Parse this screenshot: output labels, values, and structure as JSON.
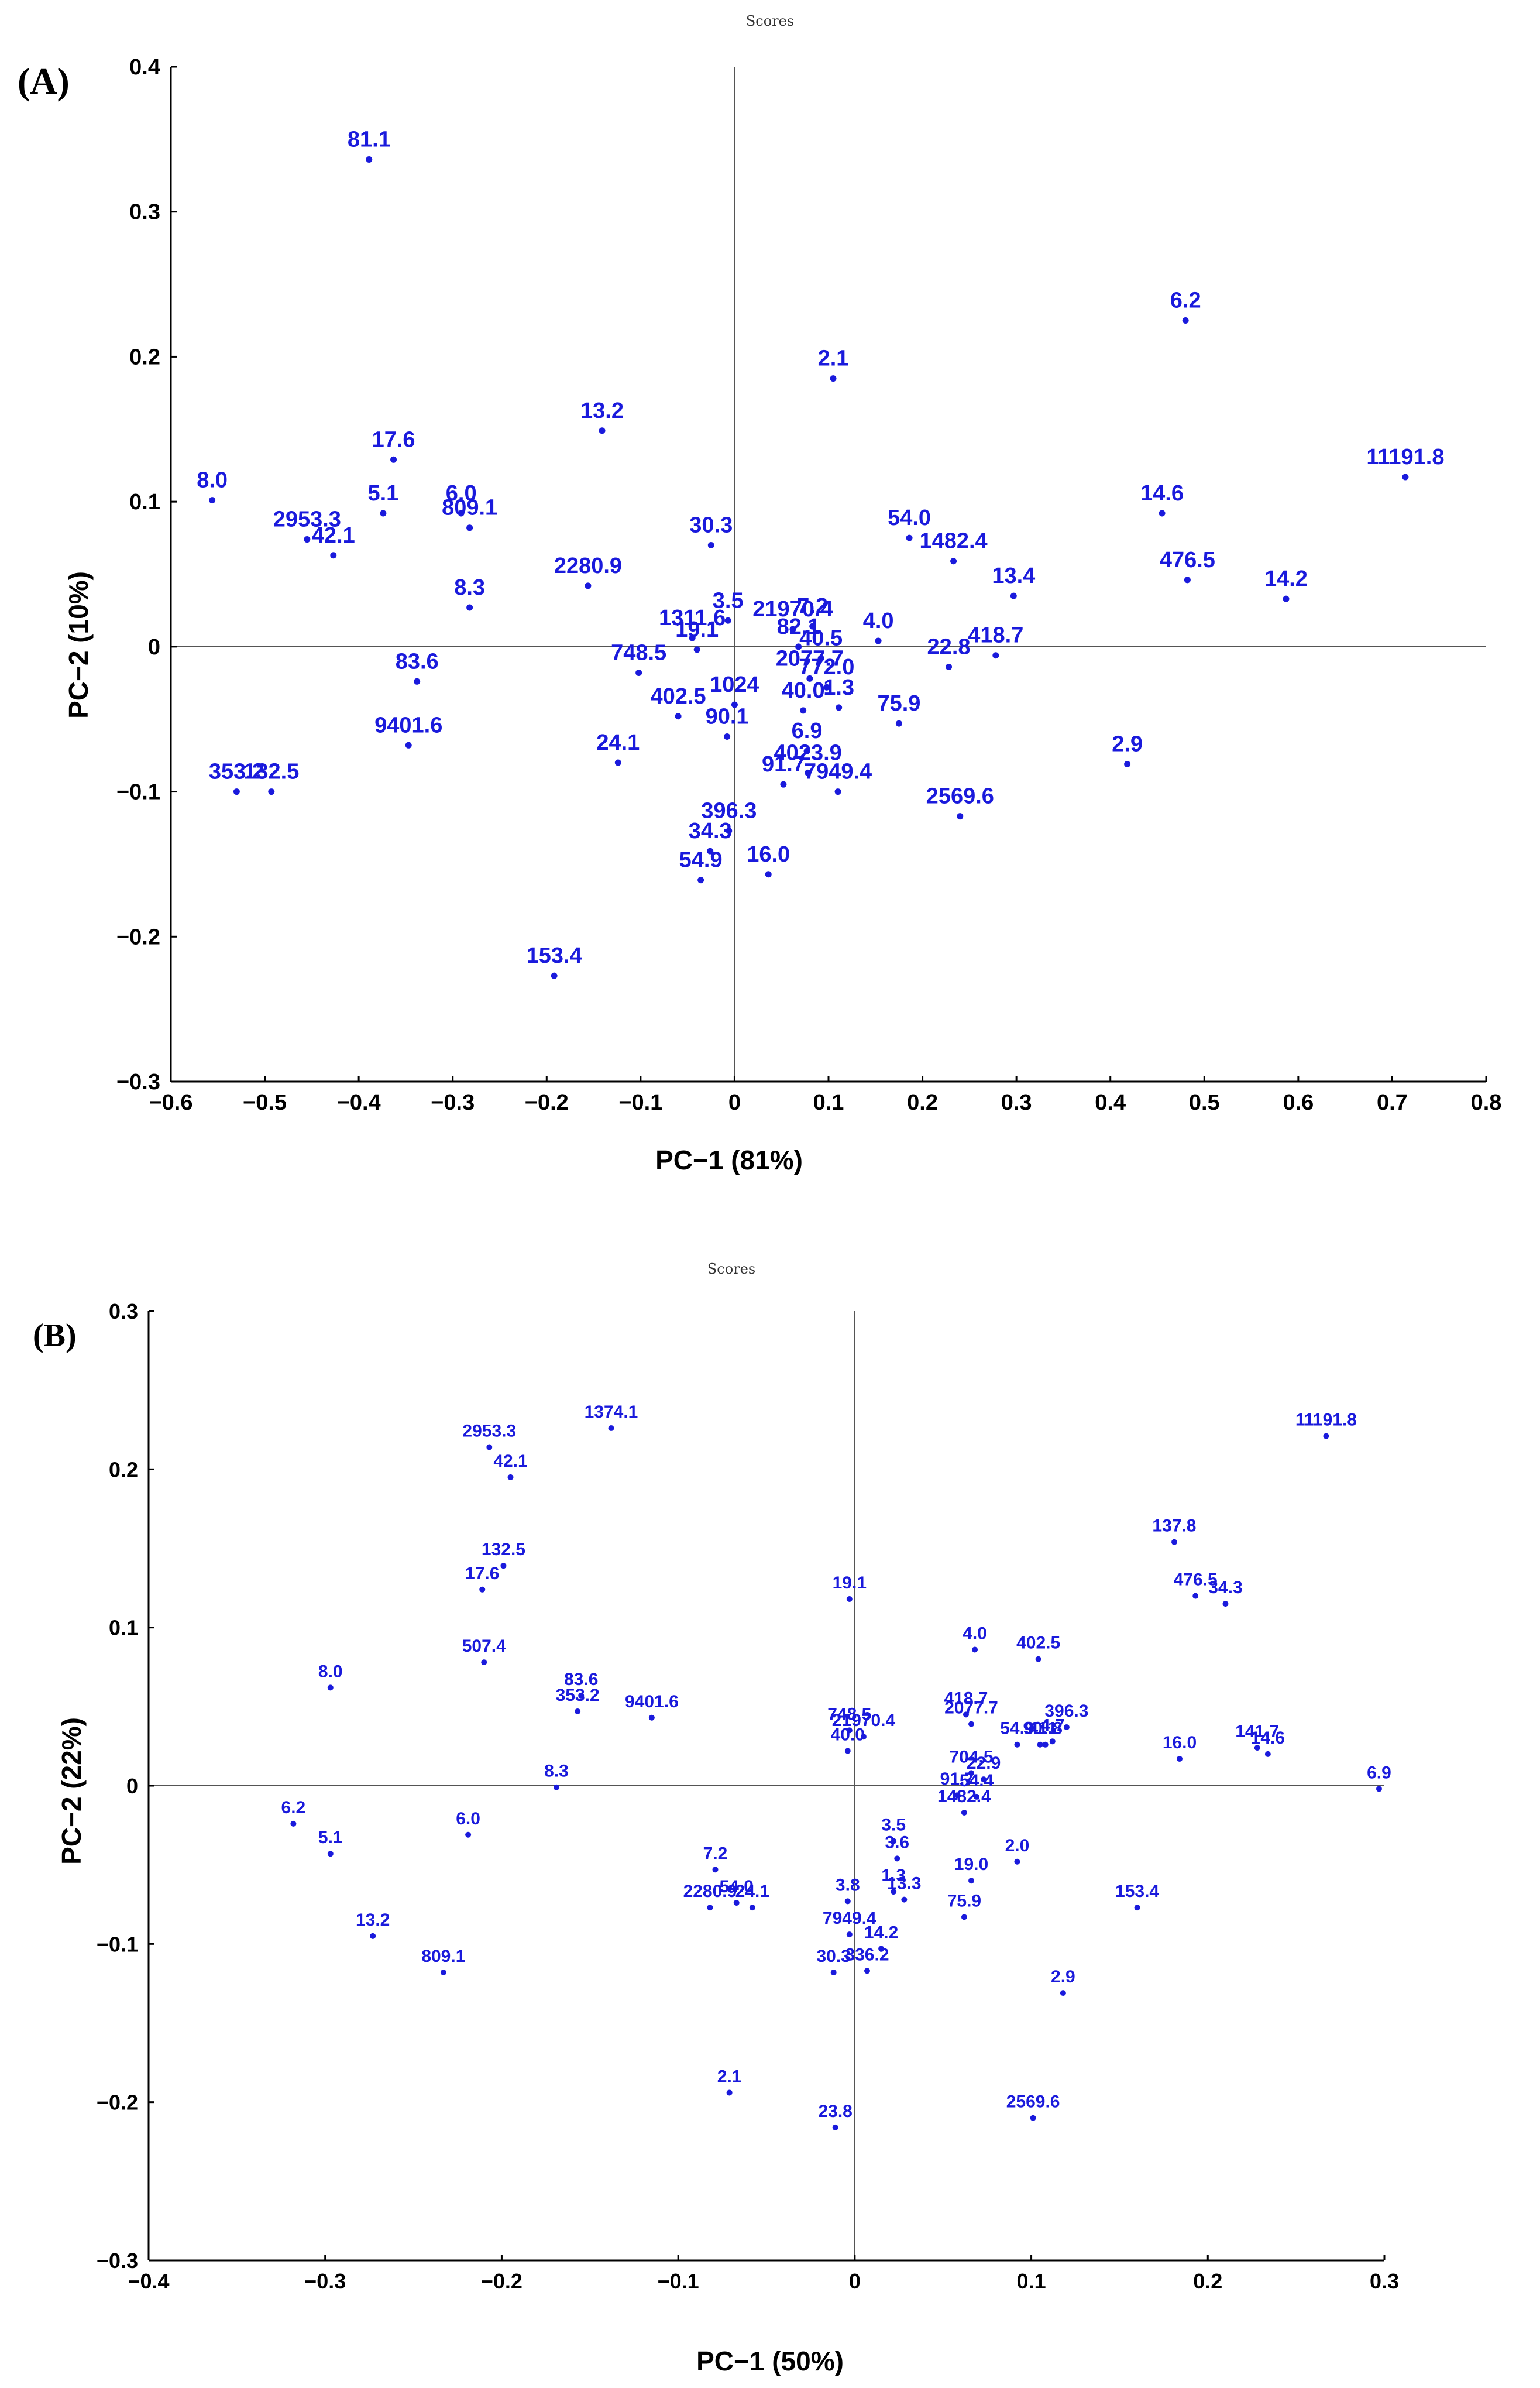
{
  "colors": {
    "points": "#1a1adc",
    "axes": "#000000"
  },
  "chart_data": [
    {
      "type": "scatter",
      "panel_label": "(A)",
      "title": "Scores",
      "xlabel": "PC−1 (81%)",
      "ylabel": "PC−2 (10%)",
      "xlim": [
        -0.6,
        0.8
      ],
      "ylim": [
        -0.3,
        0.4
      ],
      "xticks": [
        -0.6,
        -0.5,
        -0.4,
        -0.3,
        -0.2,
        -0.1,
        0,
        0.1,
        0.2,
        0.3,
        0.4,
        0.5,
        0.6,
        0.7,
        0.8
      ],
      "xtick_labels": [
        "−0.6",
        "−0.5",
        "−0.4",
        "−0.3",
        "−0.2",
        "−0.1",
        "0",
        "0.1",
        "0.2",
        "0.3",
        "0.4",
        "0.5",
        "0.6",
        "0.7",
        "0.8"
      ],
      "yticks": [
        -0.3,
        -0.2,
        -0.1,
        0,
        0.1,
        0.2,
        0.3,
        0.4
      ],
      "ytick_labels": [
        "−0.3",
        "−0.2",
        "−0.1",
        "0",
        "0.1",
        "0.2",
        "0.3",
        "0.4"
      ],
      "points": [
        {
          "label": "81.1",
          "x": -0.389,
          "y": 0.336
        },
        {
          "label": "6.2",
          "x": 0.48,
          "y": 0.225
        },
        {
          "label": "2.1",
          "x": 0.105,
          "y": 0.185
        },
        {
          "label": "13.2",
          "x": -0.141,
          "y": 0.149
        },
        {
          "label": "11191.8",
          "x": 0.714,
          "y": 0.117
        },
        {
          "label": "17.6",
          "x": -0.363,
          "y": 0.129
        },
        {
          "label": "8.0",
          "x": -0.556,
          "y": 0.101
        },
        {
          "label": "2953.3",
          "x": -0.455,
          "y": 0.074
        },
        {
          "label": "5.1",
          "x": -0.374,
          "y": 0.092
        },
        {
          "label": "6.0",
          "x": -0.291,
          "y": 0.092
        },
        {
          "label": "809.1",
          "x": -0.282,
          "y": 0.082
        },
        {
          "label": "42.1",
          "x": -0.427,
          "y": 0.063
        },
        {
          "label": "14.6",
          "x": 0.455,
          "y": 0.092
        },
        {
          "label": "54.0",
          "x": 0.186,
          "y": 0.075
        },
        {
          "label": "30.3",
          "x": -0.025,
          "y": 0.07
        },
        {
          "label": "1482.4",
          "x": 0.233,
          "y": 0.059
        },
        {
          "label": "476.5",
          "x": 0.482,
          "y": 0.046
        },
        {
          "label": "2280.9",
          "x": -0.156,
          "y": 0.042
        },
        {
          "label": "13.4",
          "x": 0.297,
          "y": 0.035
        },
        {
          "label": "14.2",
          "x": 0.587,
          "y": 0.033
        },
        {
          "label": "8.3",
          "x": -0.282,
          "y": 0.027
        },
        {
          "label": "3.5",
          "x": -0.007,
          "y": 0.018
        },
        {
          "label": "21970.4",
          "x": 0.062,
          "y": 0.012
        },
        {
          "label": "7.2",
          "x": 0.083,
          "y": 0.014
        },
        {
          "label": "4.0",
          "x": 0.153,
          "y": 0.004
        },
        {
          "label": "1311.6",
          "x": -0.045,
          "y": 0.006
        },
        {
          "label": "19.1",
          "x": -0.04,
          "y": -0.002
        },
        {
          "label": "82.1",
          "x": 0.068,
          "y": 0.0
        },
        {
          "label": "40.5",
          "x": 0.092,
          "y": -0.008
        },
        {
          "label": "748.5",
          "x": -0.102,
          "y": -0.018
        },
        {
          "label": "418.7",
          "x": 0.278,
          "y": -0.006
        },
        {
          "label": "22.8",
          "x": 0.228,
          "y": -0.014
        },
        {
          "label": "2077.7",
          "x": 0.08,
          "y": -0.022
        },
        {
          "label": "772.0",
          "x": 0.098,
          "y": -0.028
        },
        {
          "label": "1024",
          "x": 0.0,
          "y": -0.04
        },
        {
          "label": "402.5",
          "x": -0.06,
          "y": -0.048
        },
        {
          "label": "40.0",
          "x": 0.073,
          "y": -0.044
        },
        {
          "label": "1.3",
          "x": 0.111,
          "y": -0.042
        },
        {
          "label": "90.1",
          "x": -0.008,
          "y": -0.062
        },
        {
          "label": "75.9",
          "x": 0.175,
          "y": -0.053
        },
        {
          "label": "6.9",
          "x": 0.077,
          "y": -0.072
        },
        {
          "label": "83.6",
          "x": -0.338,
          "y": -0.024
        },
        {
          "label": "9401.6",
          "x": -0.347,
          "y": -0.068
        },
        {
          "label": "24.1",
          "x": -0.124,
          "y": -0.08
        },
        {
          "label": "4023.9",
          "x": 0.078,
          "y": -0.087
        },
        {
          "label": "91.7",
          "x": 0.052,
          "y": -0.095
        },
        {
          "label": "7949.4",
          "x": 0.11,
          "y": -0.1
        },
        {
          "label": "2.9",
          "x": 0.418,
          "y": -0.081
        },
        {
          "label": "2569.6",
          "x": 0.24,
          "y": -0.117
        },
        {
          "label": "353.2",
          "x": -0.53,
          "y": -0.1
        },
        {
          "label": "132.5",
          "x": -0.493,
          "y": -0.1
        },
        {
          "label": "396.3",
          "x": -0.006,
          "y": -0.127
        },
        {
          "label": "34.3",
          "x": -0.026,
          "y": -0.141
        },
        {
          "label": "54.9",
          "x": -0.036,
          "y": -0.161
        },
        {
          "label": "16.0",
          "x": 0.036,
          "y": -0.157
        },
        {
          "label": "153.4",
          "x": -0.192,
          "y": -0.227
        }
      ]
    },
    {
      "type": "scatter",
      "panel_label": "(B)",
      "title": "Scores",
      "xlabel": "PC−1 (50%)",
      "ylabel": "PC−2 (22%)",
      "xlim": [
        -0.4,
        0.3
      ],
      "ylim": [
        -0.3,
        0.3
      ],
      "xticks": [
        -0.4,
        -0.3,
        -0.2,
        -0.1,
        0,
        0.1,
        0.2,
        0.3
      ],
      "xtick_labels": [
        "−0.4",
        "−0.3",
        "−0.2",
        "−0.1",
        "0",
        "0.1",
        "0.2",
        "0.3"
      ],
      "yticks": [
        -0.3,
        -0.2,
        -0.1,
        0,
        0.1,
        0.2,
        0.3
      ],
      "ytick_labels": [
        "−0.3",
        "−0.2",
        "−0.1",
        "0",
        "0.1",
        "0.2",
        "0.3"
      ],
      "points": [
        {
          "label": "1374.1",
          "x": -0.138,
          "y": 0.226
        },
        {
          "label": "2953.3",
          "x": -0.207,
          "y": 0.214
        },
        {
          "label": "42.1",
          "x": -0.195,
          "y": 0.195
        },
        {
          "label": "11191.8",
          "x": 0.267,
          "y": 0.221
        },
        {
          "label": "137.8",
          "x": 0.181,
          "y": 0.154
        },
        {
          "label": "132.5",
          "x": -0.199,
          "y": 0.139
        },
        {
          "label": "17.6",
          "x": -0.211,
          "y": 0.124
        },
        {
          "label": "476.5",
          "x": 0.193,
          "y": 0.12
        },
        {
          "label": "34.3",
          "x": 0.21,
          "y": 0.115
        },
        {
          "label": "19.1",
          "x": -0.003,
          "y": 0.118
        },
        {
          "label": "4.0",
          "x": 0.068,
          "y": 0.086
        },
        {
          "label": "402.5",
          "x": 0.104,
          "y": 0.08
        },
        {
          "label": "507.4",
          "x": -0.21,
          "y": 0.078
        },
        {
          "label": "8.0",
          "x": -0.297,
          "y": 0.062
        },
        {
          "label": "83.6",
          "x": -0.155,
          "y": 0.057
        },
        {
          "label": "353.2",
          "x": -0.157,
          "y": 0.047
        },
        {
          "label": "9401.6",
          "x": -0.115,
          "y": 0.043
        },
        {
          "label": "418.7",
          "x": 0.063,
          "y": 0.045
        },
        {
          "label": "396.3",
          "x": 0.12,
          "y": 0.037
        },
        {
          "label": "2077.7",
          "x": 0.066,
          "y": 0.039
        },
        {
          "label": "748.5",
          "x": -0.003,
          "y": 0.035
        },
        {
          "label": "21970.4",
          "x": 0.005,
          "y": 0.031
        },
        {
          "label": "90.1",
          "x": 0.105,
          "y": 0.026
        },
        {
          "label": "4.7",
          "x": 0.112,
          "y": 0.028
        },
        {
          "label": "41.8",
          "x": 0.108,
          "y": 0.026
        },
        {
          "label": "40.0",
          "x": -0.004,
          "y": 0.022
        },
        {
          "label": "54.9",
          "x": 0.092,
          "y": 0.026
        },
        {
          "label": "16.0",
          "x": 0.184,
          "y": 0.017
        },
        {
          "label": "141.7",
          "x": 0.228,
          "y": 0.024
        },
        {
          "label": "14.6",
          "x": 0.234,
          "y": 0.02
        },
        {
          "label": "6.9",
          "x": 0.297,
          "y": -0.002
        },
        {
          "label": "704.5",
          "x": 0.066,
          "y": 0.008
        },
        {
          "label": "22.9",
          "x": 0.073,
          "y": 0.004
        },
        {
          "label": "91.7",
          "x": 0.058,
          "y": -0.006
        },
        {
          "label": "54.4",
          "x": 0.069,
          "y": -0.007
        },
        {
          "label": "1482.4",
          "x": 0.062,
          "y": -0.017
        },
        {
          "label": "8.3",
          "x": -0.169,
          "y": -0.001
        },
        {
          "label": "6.2",
          "x": -0.318,
          "y": -0.024
        },
        {
          "label": "5.1",
          "x": -0.297,
          "y": -0.043
        },
        {
          "label": "6.0",
          "x": -0.219,
          "y": -0.031
        },
        {
          "label": "3.5",
          "x": 0.022,
          "y": -0.035
        },
        {
          "label": "3.6",
          "x": 0.024,
          "y": -0.046
        },
        {
          "label": "2.0",
          "x": 0.092,
          "y": -0.048
        },
        {
          "label": "7.2",
          "x": -0.079,
          "y": -0.053
        },
        {
          "label": "19.0",
          "x": 0.066,
          "y": -0.06
        },
        {
          "label": "2280.9",
          "x": -0.082,
          "y": -0.077
        },
        {
          "label": "24.1",
          "x": -0.058,
          "y": -0.077
        },
        {
          "label": "54.0",
          "x": -0.067,
          "y": -0.074
        },
        {
          "label": "3.8",
          "x": -0.004,
          "y": -0.073
        },
        {
          "label": "1.3",
          "x": 0.022,
          "y": -0.067
        },
        {
          "label": "13.3",
          "x": 0.028,
          "y": -0.072
        },
        {
          "label": "75.9",
          "x": 0.062,
          "y": -0.083
        },
        {
          "label": "153.4",
          "x": 0.16,
          "y": -0.077
        },
        {
          "label": "7949.4",
          "x": -0.003,
          "y": -0.094
        },
        {
          "label": "14.2",
          "x": 0.015,
          "y": -0.103
        },
        {
          "label": "13.2",
          "x": -0.273,
          "y": -0.095
        },
        {
          "label": "809.1",
          "x": -0.233,
          "y": -0.118
        },
        {
          "label": "30.3",
          "x": -0.012,
          "y": -0.118
        },
        {
          "label": "336.2",
          "x": 0.007,
          "y": -0.117
        },
        {
          "label": "2.9",
          "x": 0.118,
          "y": -0.131
        },
        {
          "label": "2.1",
          "x": -0.071,
          "y": -0.194
        },
        {
          "label": "23.8",
          "x": -0.011,
          "y": -0.216
        },
        {
          "label": "2569.6",
          "x": 0.101,
          "y": -0.21
        }
      ]
    }
  ]
}
